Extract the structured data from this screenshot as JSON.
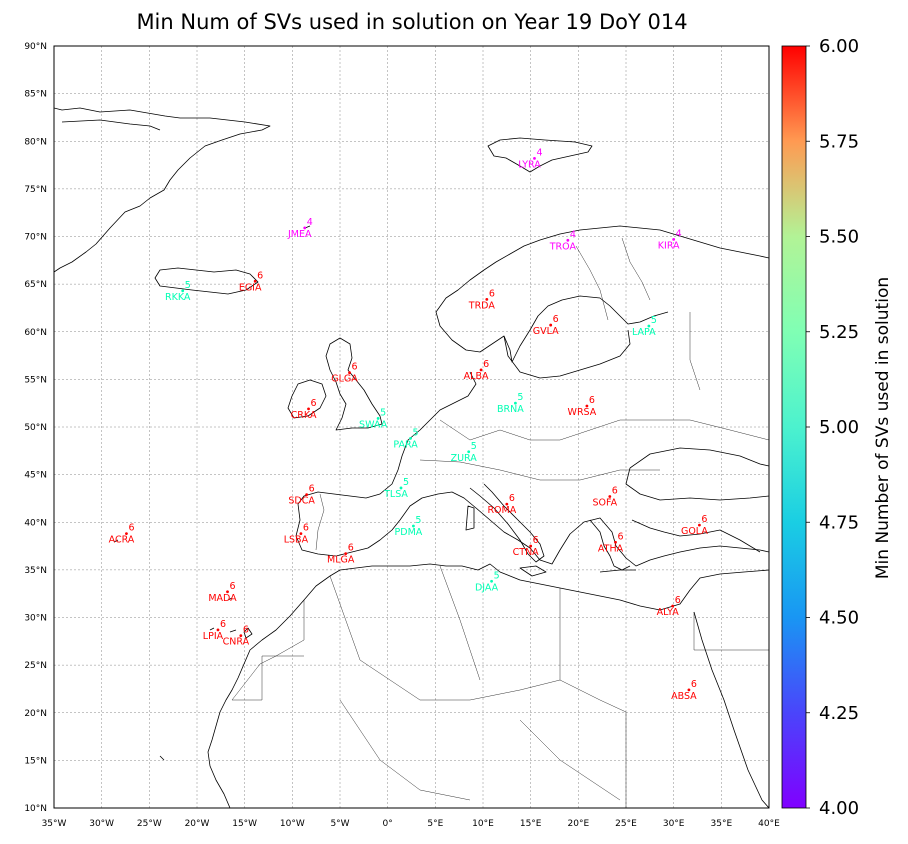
{
  "title": "Min Num of SVs used in solution on Year 19 DoY 014",
  "colorbar": {
    "label": "Min Number of SVs used in solution",
    "ticks": [
      "4.00",
      "4.25",
      "4.50",
      "4.75",
      "5.00",
      "5.25",
      "5.50",
      "5.75",
      "6.00"
    ],
    "min": 4.0,
    "max": 6.0,
    "colormap": "rainbow"
  },
  "map": {
    "projection": "PlateCarree",
    "lon_range": [
      -35,
      40
    ],
    "lat_range": [
      10,
      90
    ],
    "gridlines": true,
    "lon_ticks": [
      {
        "lon": -35,
        "label": "35°W"
      },
      {
        "lon": -30,
        "label": "30°W"
      },
      {
        "lon": -25,
        "label": "25°W"
      },
      {
        "lon": -20,
        "label": "20°W"
      },
      {
        "lon": -15,
        "label": "15°W"
      },
      {
        "lon": -10,
        "label": "10°W"
      },
      {
        "lon": -5,
        "label": "5°W"
      },
      {
        "lon": 0,
        "label": "0°"
      },
      {
        "lon": 5,
        "label": "5°E"
      },
      {
        "lon": 10,
        "label": "10°E"
      },
      {
        "lon": 15,
        "label": "15°E"
      },
      {
        "lon": 20,
        "label": "20°E"
      },
      {
        "lon": 25,
        "label": "25°E"
      },
      {
        "lon": 30,
        "label": "30°E"
      },
      {
        "lon": 35,
        "label": "35°E"
      },
      {
        "lon": 40,
        "label": "40°E"
      }
    ],
    "lat_ticks": [
      {
        "lat": 10,
        "label": "10°N"
      },
      {
        "lat": 15,
        "label": "15°N"
      },
      {
        "lat": 20,
        "label": "20°N"
      },
      {
        "lat": 25,
        "label": "25°N"
      },
      {
        "lat": 30,
        "label": "30°N"
      },
      {
        "lat": 35,
        "label": "35°N"
      },
      {
        "lat": 40,
        "label": "40°N"
      },
      {
        "lat": 45,
        "label": "45°N"
      },
      {
        "lat": 50,
        "label": "50°N"
      },
      {
        "lat": 55,
        "label": "55°N"
      },
      {
        "lat": 60,
        "label": "60°N"
      },
      {
        "lat": 65,
        "label": "65°N"
      },
      {
        "lat": 70,
        "label": "70°N"
      },
      {
        "lat": 75,
        "label": "75°N"
      },
      {
        "lat": 80,
        "label": "80°N"
      },
      {
        "lat": 85,
        "label": "85°N"
      },
      {
        "lat": 90,
        "label": "90°N"
      }
    ]
  },
  "stations": [
    {
      "name": "LYRA",
      "lon": 15.4,
      "lat": 78.2,
      "value": 4
    },
    {
      "name": "JMEA",
      "lon": -8.7,
      "lat": 70.9,
      "value": 4
    },
    {
      "name": "TROA",
      "lon": 18.9,
      "lat": 69.6,
      "value": 4
    },
    {
      "name": "KIRA",
      "lon": 30.0,
      "lat": 69.7,
      "value": 4
    },
    {
      "name": "EGIA",
      "lon": -13.9,
      "lat": 65.3,
      "value": 6
    },
    {
      "name": "RKKA",
      "lon": -21.5,
      "lat": 64.3,
      "value": 5
    },
    {
      "name": "TRDA",
      "lon": 10.4,
      "lat": 63.4,
      "value": 6
    },
    {
      "name": "GVLA",
      "lon": 17.1,
      "lat": 60.7,
      "value": 6
    },
    {
      "name": "LAPA",
      "lon": 27.4,
      "lat": 60.6,
      "value": 5
    },
    {
      "name": "ALBA",
      "lon": 9.8,
      "lat": 56.0,
      "value": 6
    },
    {
      "name": "GLGA",
      "lon": -4.0,
      "lat": 55.7,
      "value": 6
    },
    {
      "name": "CRKA",
      "lon": -8.3,
      "lat": 51.9,
      "value": 6
    },
    {
      "name": "SWAA",
      "lon": -1.0,
      "lat": 50.9,
      "value": 5
    },
    {
      "name": "BRNA",
      "lon": 13.4,
      "lat": 52.5,
      "value": 5
    },
    {
      "name": "WRSA",
      "lon": 20.9,
      "lat": 52.2,
      "value": 6
    },
    {
      "name": "PARA",
      "lon": 2.4,
      "lat": 48.8,
      "value": 5
    },
    {
      "name": "ZURA",
      "lon": 8.5,
      "lat": 47.4,
      "value": 5
    },
    {
      "name": "TLSA",
      "lon": 1.4,
      "lat": 43.6,
      "value": 5
    },
    {
      "name": "SDCA",
      "lon": -8.5,
      "lat": 42.9,
      "value": 6
    },
    {
      "name": "ROMA",
      "lon": 12.5,
      "lat": 41.9,
      "value": 6
    },
    {
      "name": "SOFA",
      "lon": 23.3,
      "lat": 42.7,
      "value": 6
    },
    {
      "name": "ACRA",
      "lon": -27.4,
      "lat": 38.8,
      "value": 6
    },
    {
      "name": "LSBA",
      "lon": -9.1,
      "lat": 38.8,
      "value": 6
    },
    {
      "name": "PDMA",
      "lon": 2.7,
      "lat": 39.6,
      "value": 5
    },
    {
      "name": "GOLA",
      "lon": 32.7,
      "lat": 39.7,
      "value": 6
    },
    {
      "name": "MLGA",
      "lon": -4.4,
      "lat": 36.7,
      "value": 6
    },
    {
      "name": "CTNA",
      "lon": 15.0,
      "lat": 37.5,
      "value": 6
    },
    {
      "name": "ATHA",
      "lon": 23.9,
      "lat": 37.9,
      "value": 6
    },
    {
      "name": "DJAA",
      "lon": 10.9,
      "lat": 33.8,
      "value": 5
    },
    {
      "name": "MADA",
      "lon": -16.8,
      "lat": 32.7,
      "value": 6
    },
    {
      "name": "ALYA",
      "lon": 29.9,
      "lat": 31.2,
      "value": 6
    },
    {
      "name": "LPIA",
      "lon": -17.8,
      "lat": 28.7,
      "value": 6
    },
    {
      "name": "CNRA",
      "lon": -15.4,
      "lat": 28.1,
      "value": 6
    },
    {
      "name": "ABSA",
      "lon": 31.6,
      "lat": 22.4,
      "value": 6
    }
  ]
}
